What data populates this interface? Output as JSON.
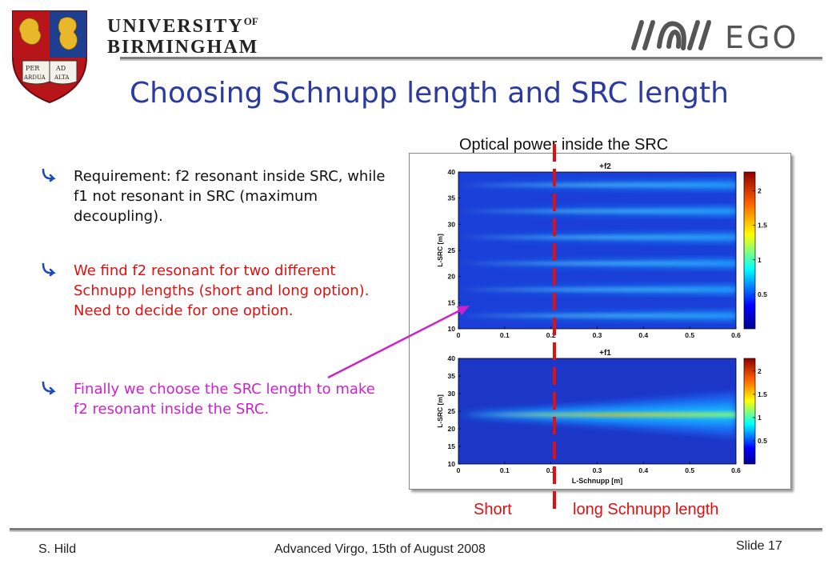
{
  "header": {
    "university_line1": "UNIVERSITY",
    "university_of": "OF",
    "university_line2": "BIRMINGHAM",
    "crest_motto": [
      "PER",
      "AD",
      "ARDUA",
      "ALTA"
    ],
    "ego_text": "EGO"
  },
  "title": "Choosing Schnupp length and SRC length",
  "bullets": [
    {
      "text": "Requirement: f2 resonant inside SRC, while f1 not resonant in SRC (maximum decoupling).",
      "color": "#111111"
    },
    {
      "text": "We find f2 resonant for two different Schnupp lengths (short and long option). Need to decide for one option.",
      "color": "#e01010"
    },
    {
      "text": "Finally we choose the SRC length to make f2 resonant inside the SRC.",
      "color": "#cc22cc"
    }
  ],
  "figure": {
    "caption": "Optical power inside the SRC",
    "short_label": "Short",
    "long_label": "long Schnupp length",
    "divider_color": "#e01010",
    "arrow_color": "#cc22cc"
  },
  "chart_data": [
    {
      "type": "heatmap",
      "title": "+f2",
      "xlabel": "L-Schnupp [m]",
      "ylabel": "L-SRC [m]",
      "xlim": [
        0,
        0.6
      ],
      "ylim": [
        10,
        40
      ],
      "xticks": [
        "0",
        "0.1",
        "0.2",
        "0.3",
        "0.4",
        "0.5",
        "0.6"
      ],
      "yticks": [
        "10",
        "15",
        "20",
        "25",
        "30",
        "35",
        "40"
      ],
      "colorbar_ticks": [
        "0.5",
        "1",
        "1.5",
        "2"
      ],
      "resonance_l_src": [
        12.5,
        17.5,
        22.5,
        27.5,
        32.5,
        37.5
      ]
    },
    {
      "type": "heatmap",
      "title": "+f1",
      "xlabel": "L-Schnupp [m]",
      "ylabel": "L-SRC [m]",
      "xlim": [
        0,
        0.6
      ],
      "ylim": [
        10,
        40
      ],
      "xticks": [
        "0",
        "0.1",
        "0.2",
        "0.3",
        "0.4",
        "0.5",
        "0.6"
      ],
      "yticks": [
        "10",
        "15",
        "20",
        "25",
        "30",
        "35",
        "40"
      ],
      "colorbar_ticks": [
        "0.5",
        "1",
        "1.5",
        "2"
      ],
      "resonance_l_src": [
        24
      ]
    }
  ],
  "footer": {
    "author": "S. Hild",
    "event": "Advanced Virgo, 15th of August 2008",
    "slide": "Slide 17"
  }
}
